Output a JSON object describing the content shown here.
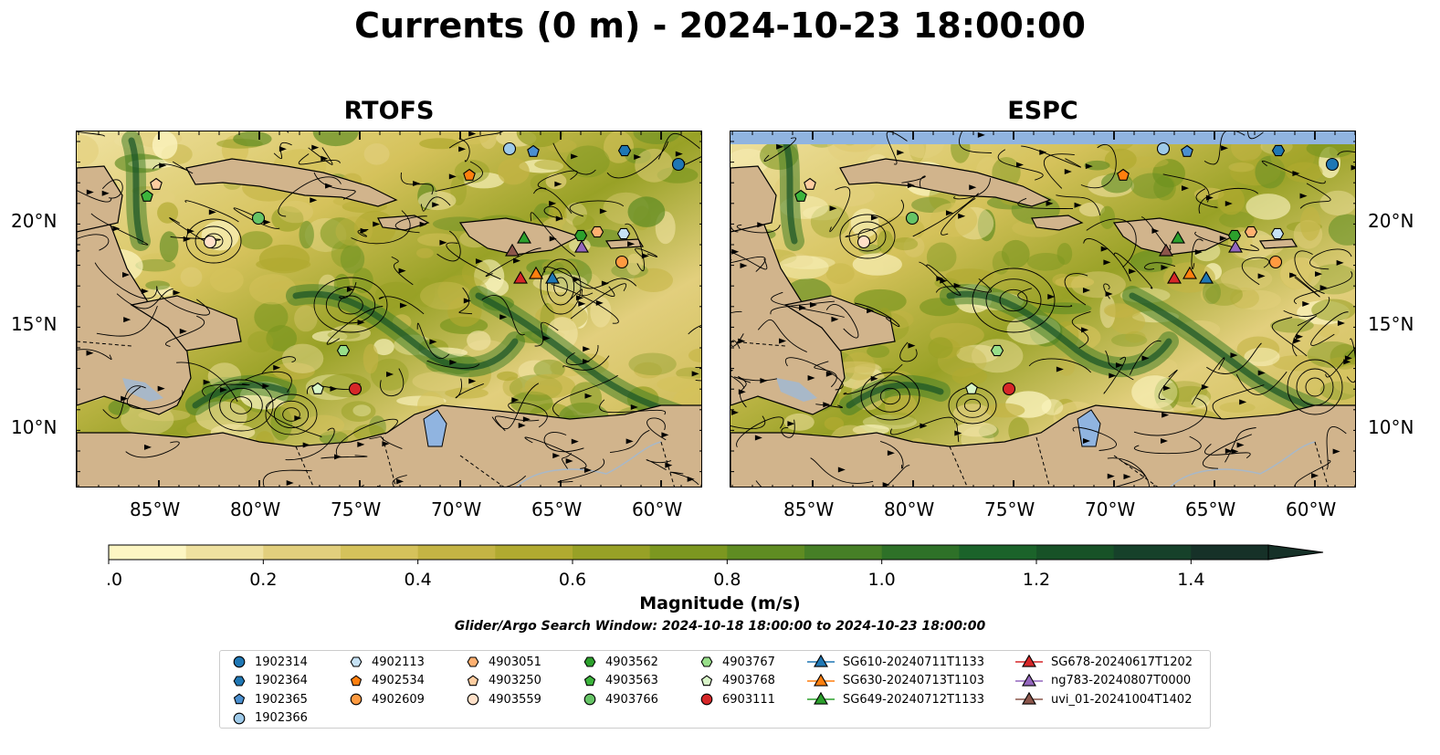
{
  "title": "Currents (0 m) - 2024-10-23 18:00:00",
  "panels": [
    {
      "title": "RTOFS"
    },
    {
      "title": "ESPC"
    }
  ],
  "axes": {
    "lat_labels": [
      "20°N",
      "15°N",
      "10°N"
    ],
    "lon_labels": [
      "85°W",
      "80°W",
      "75°W",
      "70°W",
      "65°W",
      "60°W"
    ]
  },
  "colorbar": {
    "label": "Magnitude (m/s)",
    "ticks": [
      "0.0",
      "0.2",
      "0.4",
      "0.6",
      "0.8",
      "1.0",
      "1.2",
      "1.4"
    ],
    "min": 0.0,
    "max": 1.5,
    "step": 0.1,
    "extend": "max",
    "colors": [
      "#fdf6c3",
      "#efe1a0",
      "#e2cf7d",
      "#d5c25b",
      "#c4b444",
      "#b1aa30",
      "#98a126",
      "#7c9720",
      "#5f8c22",
      "#467f26",
      "#2e7128",
      "#1b632a",
      "#175227",
      "#16412a",
      "#163128"
    ]
  },
  "subtitle": "Glider/Argo Search Window: 2024-10-18 18:00:00 to 2024-10-23 18:00:00",
  "colors": {
    "land": "#d1b48c",
    "lake": "#90b4e0",
    "river": "#a8b8c8",
    "nodata": "#90b4e0"
  },
  "legend": [
    {
      "label": "1902314",
      "marker": "circle",
      "color": "#1f77b4"
    },
    {
      "label": "1902364",
      "marker": "hexagon",
      "color": "#1f77b4"
    },
    {
      "label": "1902365",
      "marker": "pentagon",
      "color": "#4a8fcf"
    },
    {
      "label": "1902366",
      "marker": "circle",
      "color": "#9ecae9"
    },
    {
      "label": "4902113",
      "marker": "hexagon",
      "color": "#c6e2f5"
    },
    {
      "label": "4902534",
      "marker": "pentagon",
      "color": "#ff7f0e"
    },
    {
      "label": "4902609",
      "marker": "circle",
      "color": "#ff9a40"
    },
    {
      "label": "4903051",
      "marker": "hexagon",
      "color": "#ffb070"
    },
    {
      "label": "4903250",
      "marker": "pentagon",
      "color": "#ffcda0"
    },
    {
      "label": "4903559",
      "marker": "circle",
      "color": "#ffe0c8"
    },
    {
      "label": "4903562",
      "marker": "hexagon",
      "color": "#2ca02c"
    },
    {
      "label": "4903563",
      "marker": "pentagon",
      "color": "#3cb43c"
    },
    {
      "label": "4903766",
      "marker": "circle",
      "color": "#66c466"
    },
    {
      "label": "4903767",
      "marker": "hexagon",
      "color": "#98df8a"
    },
    {
      "label": "4903768",
      "marker": "pentagon",
      "color": "#d8f5c8"
    },
    {
      "label": "6903111",
      "marker": "circle",
      "color": "#d62728"
    },
    {
      "label": "SG610-20240711T1133",
      "marker": "triangle",
      "color": "#1f77b4"
    },
    {
      "label": "SG630-20240713T1103",
      "marker": "triangle",
      "color": "#ff7f0e"
    },
    {
      "label": "SG649-20240712T1133",
      "marker": "triangle",
      "color": "#2ca02c"
    },
    {
      "label": "SG678-20240617T1202",
      "marker": "triangle",
      "color": "#d62728"
    },
    {
      "label": "ng783-20240807T0000",
      "marker": "triangle",
      "color": "#9467bd"
    },
    {
      "label": "uvi_01-20241004T1402",
      "marker": "triangle",
      "color": "#8c564b"
    }
  ]
}
